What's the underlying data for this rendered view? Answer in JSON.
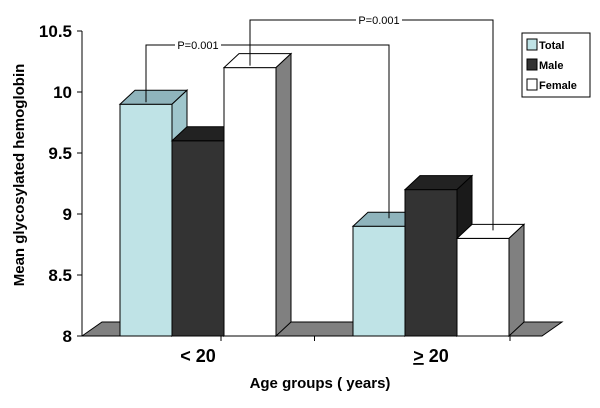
{
  "chart_data": {
    "type": "bar",
    "style": "3d-clustered",
    "ylabel": "Mean glycosylated hemoglobin",
    "xlabel": "Age groups ( years)",
    "ylim": [
      8,
      10.5
    ],
    "yticks": [
      "8",
      "8.5",
      "9",
      "9.5",
      "10",
      "10.5"
    ],
    "categories": [
      "< 20",
      "> 20"
    ],
    "series": [
      {
        "name": "Total",
        "color": "#bfe3e6",
        "values": [
          9.9,
          8.9
        ]
      },
      {
        "name": "Male",
        "color": "#333333",
        "values": [
          9.6,
          9.2
        ]
      },
      {
        "name": "Female",
        "color": "#ffffff",
        "values": [
          10.2,
          8.8
        ]
      }
    ],
    "legend_position": "top-right",
    "annotations": [
      {
        "text": "P=0.001",
        "connects": [
          "< 20 Total",
          "> 20 Total"
        ]
      },
      {
        "text": "P=0.001",
        "connects": [
          "< 20 Female",
          "> 20 Female"
        ]
      }
    ],
    "floor_color": "#808080"
  }
}
